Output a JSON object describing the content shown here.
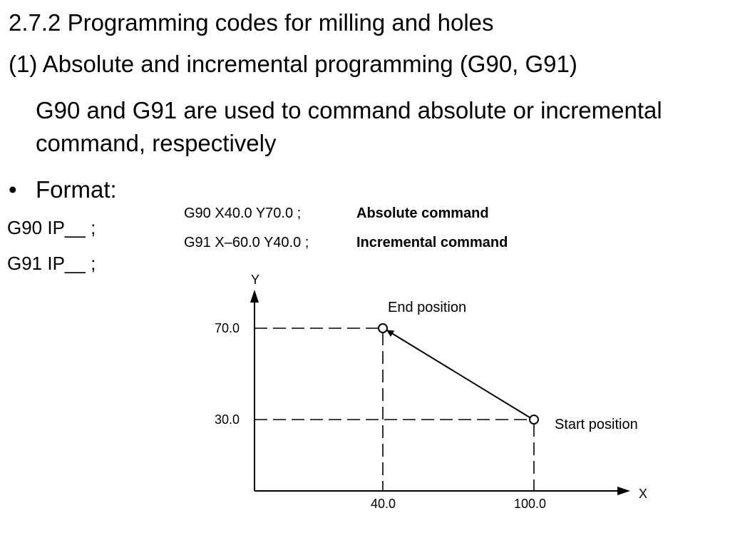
{
  "slide": {
    "heading": "2.7.2 Programming codes for milling and holes",
    "subheading": "(1) Absolute and incremental programming (G90, G91)",
    "description": "G90 and G91 are used to command absolute or incremental command, respectively",
    "format_bullet": "•",
    "format_label": "Format:",
    "formats": [
      "G90 IP__ ;",
      "G91 IP__ ;"
    ]
  },
  "figure": {
    "commands": [
      {
        "code": "G90 X40.0 Y70.0 ;",
        "description": "Absolute command"
      },
      {
        "code": "G91 X–60.0 Y40.0 ;",
        "description": "Incremental command"
      }
    ],
    "axis_x_label": "X",
    "axis_y_label": "Y",
    "x_ticks": [
      "40.0",
      "100.0"
    ],
    "y_ticks": [
      "70.0",
      "30.0"
    ],
    "end_label": "End position",
    "start_label": "Start position",
    "start_point": {
      "x": 100,
      "y": 30
    },
    "end_point": {
      "x": 40,
      "y": 70
    }
  }
}
